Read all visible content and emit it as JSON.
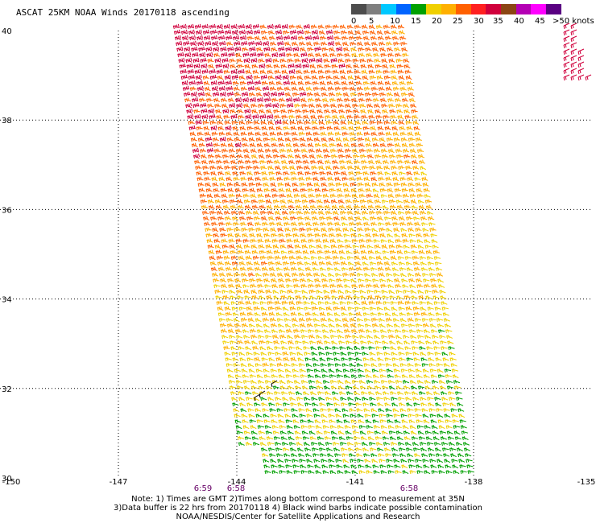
{
  "title": "ASCAT 25KM NOAA Winds 20170118 ascending",
  "legend": {
    "colors": [
      "#4d4d4d",
      "#7f7f7f",
      "#00c8ff",
      "#0064ff",
      "#00a000",
      "#f0d000",
      "#ffb000",
      "#ff6000",
      "#ff2020",
      "#d0003c",
      "#8b4513",
      "#b400b4",
      "#ff00ff",
      "#5a0082"
    ],
    "labels": [
      "0",
      "5",
      "10",
      "15",
      "20",
      "25",
      "30",
      "35",
      "40",
      "45",
      ">50 knots"
    ]
  },
  "axes": {
    "x_ticks": [
      "-150",
      "-147",
      "-144",
      "-141",
      "-138",
      "-135"
    ],
    "y_ticks": [
      "40",
      "38",
      "36",
      "34",
      "32",
      "30"
    ]
  },
  "times": [
    "6:59",
    "6:58",
    "6:58"
  ],
  "notes": [
    "Note: 1) Times are GMT 2)Times along bottom correspond to measurement at 35N",
    "3)Data buffer is 22 hrs from 20170118 4) Black wind barbs indicate possible contamination",
    "NOAA/NESDIS/Center for Satellite Applications and Research"
  ]
}
